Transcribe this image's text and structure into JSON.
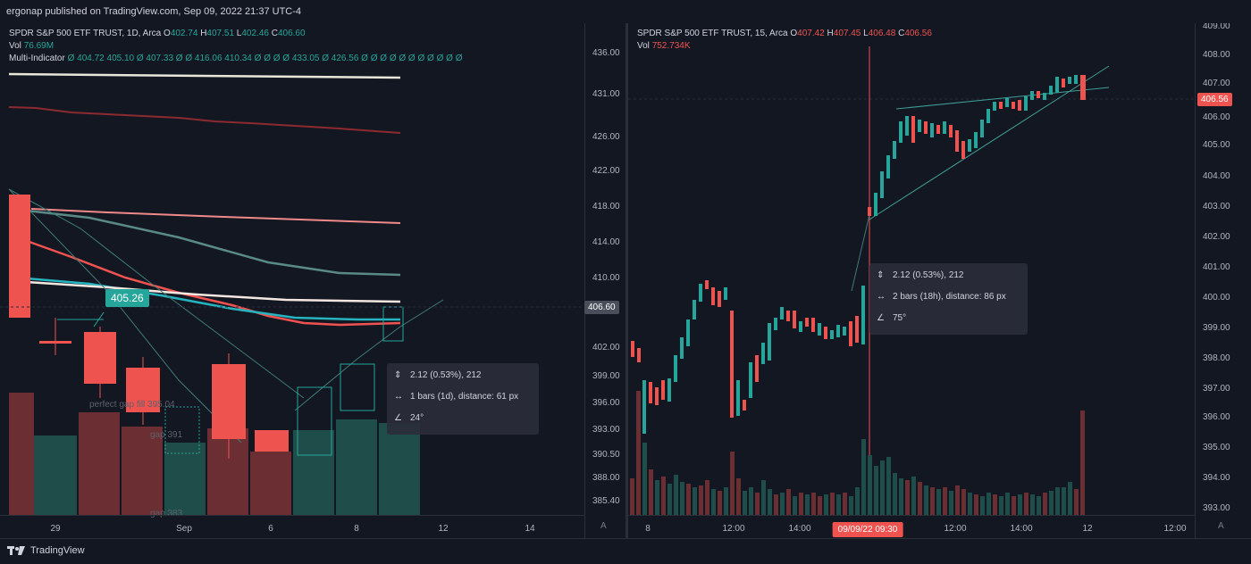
{
  "header": {
    "published": "ergonap published on TradingView.com, Sep 09, 2022 21:37 UTC-4"
  },
  "left": {
    "legend": {
      "symbol": "SPDR S&P 500 ETF TRUST, 1D, Arca",
      "o_label": "O",
      "o": "402.74",
      "h_label": "H",
      "h": "407.51",
      "l_label": "L",
      "l": "402.46",
      "c_label": "C",
      "c": "406.60",
      "vol_label": "Vol",
      "vol": "76.69M",
      "mi_label": "Multi-Indicator",
      "mi_values": "Ø  404.72  405.10  Ø  407.33  Ø  Ø  416.06  410.34  Ø  Ø  Ø  Ø  433.05  Ø  426.56  Ø  Ø  Ø  Ø  Ø  Ø  Ø  Ø  Ø  Ø  Ø"
    },
    "y_ticks": [
      "436.00",
      "431.00",
      "426.00",
      "422.00",
      "418.00",
      "414.00",
      "410.00",
      "406.60",
      "402.00",
      "399.00",
      "396.00",
      "393.00",
      "390.50",
      "388.00",
      "385.40"
    ],
    "x_ticks": [
      "29",
      "Sep",
      "6",
      "8",
      "12",
      "14"
    ],
    "axis_corner": "A",
    "price_tag": "406.60",
    "callout": "405.26",
    "annotations": {
      "gap_fill": "perfect gap fill 395.04",
      "gap1": "gap 391",
      "gap2": "gap 383"
    },
    "measure": {
      "price": "2.12 (0.53%), 212",
      "bars": "1 bars (1d), distance: 61 px",
      "angle": "24°"
    }
  },
  "right": {
    "legend": {
      "symbol": "SPDR S&P 500 ETF TRUST, 15, Arca",
      "o_label": "O",
      "o": "407.42",
      "h_label": "H",
      "h": "407.45",
      "l_label": "L",
      "l": "406.48",
      "c_label": "C",
      "c": "406.56",
      "vol_label": "Vol",
      "vol": "752.734K"
    },
    "y_ticks": [
      "409.00",
      "408.00",
      "407.00",
      "406.56",
      "406.00",
      "405.00",
      "404.00",
      "403.00",
      "402.00",
      "401.00",
      "400.00",
      "399.00",
      "398.00",
      "397.00",
      "396.00",
      "395.00",
      "394.00",
      "393.00"
    ],
    "x_ticks": [
      "8",
      "12:00",
      "14:00",
      "09/09/22  09:30",
      "12:00",
      "14:00",
      "12",
      "12:00"
    ],
    "axis_corner": "A",
    "price_tag": "406.56",
    "measure": {
      "price": "2.12 (0.53%), 212",
      "bars": "2 bars (18h), distance: 86 px",
      "angle": "75°"
    }
  },
  "footer": {
    "brand": "TradingView"
  },
  "colors": {
    "up": "#26a69a",
    "down": "#ef5350",
    "bg": "#131722",
    "grid": "#2a2e39"
  }
}
